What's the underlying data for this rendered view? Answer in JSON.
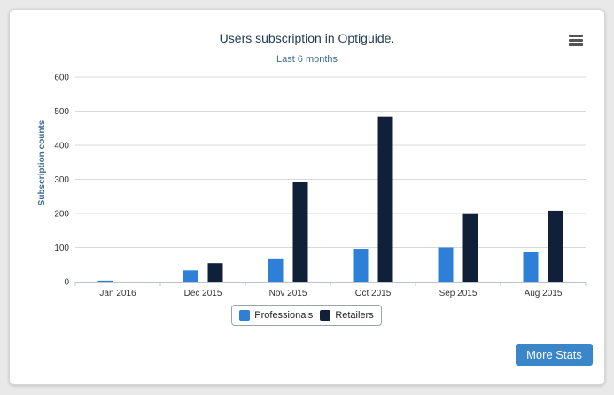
{
  "card": {
    "title": "Users subscription in Optiguide.",
    "subtitle": "Last 6 months",
    "more_stats_label": "More Stats"
  },
  "colors": {
    "professionals": "#2e7fd8",
    "retailers": "#0f2038",
    "button": "#3b86c8"
  },
  "chart_data": {
    "type": "bar",
    "title": "Users subscription in Optiguide.",
    "subtitle": "Last 6 months",
    "ylabel": "Subscription counts",
    "xlabel": "",
    "categories": [
      "Jan 2016",
      "Dec 2015",
      "Nov 2015",
      "Oct 2015",
      "Sep 2015",
      "Aug 2015"
    ],
    "y_ticks": [
      "0",
      "100",
      "200",
      "300",
      "400",
      "500",
      "600"
    ],
    "ylim": [
      0,
      600
    ],
    "grid": true,
    "legend": "bottom-center",
    "series": [
      {
        "name": "Professionals",
        "values": [
          3,
          33,
          68,
          96,
          100,
          86
        ]
      },
      {
        "name": "Retailers",
        "values": [
          0,
          54,
          291,
          484,
          198,
          208
        ]
      }
    ]
  }
}
